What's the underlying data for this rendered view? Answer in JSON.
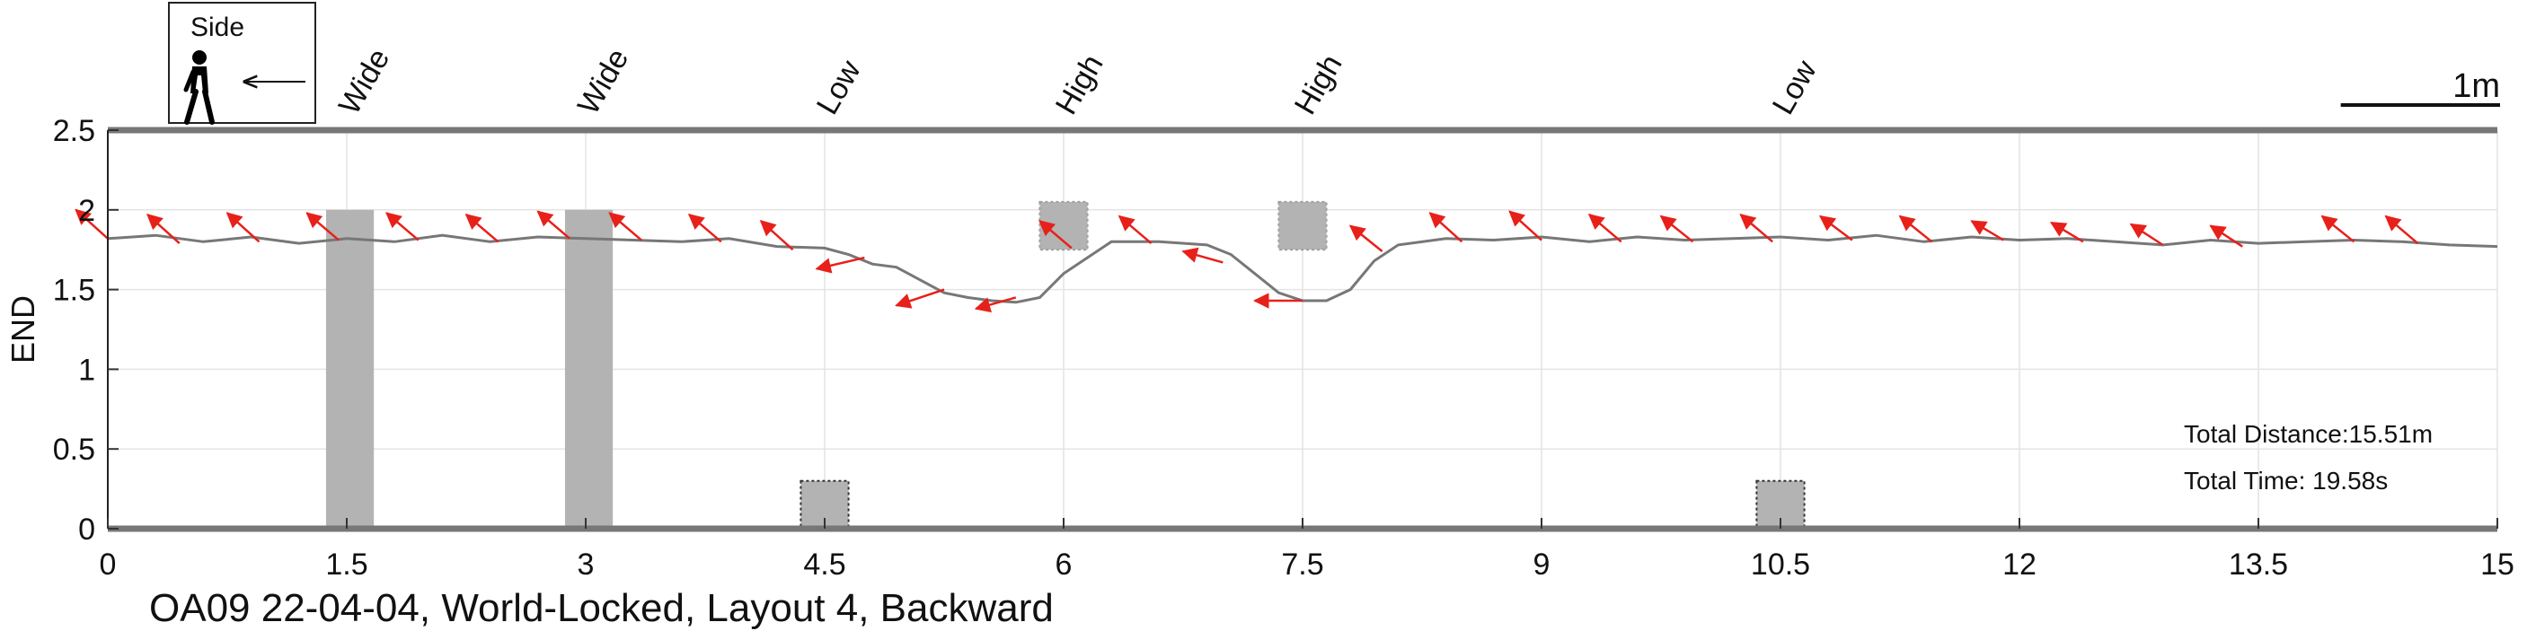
{
  "chart_data": {
    "type": "line",
    "title": "OA09 22-04-04, World-Locked, Layout 4, Backward",
    "ylabel": "END",
    "xlabel": "",
    "xlim": [
      0,
      15
    ],
    "ylim": [
      0,
      2.5
    ],
    "x_ticks": [
      "0",
      "1.5",
      "3",
      "4.5",
      "6",
      "7.5",
      "9",
      "10.5",
      "12",
      "13.5",
      "15"
    ],
    "y_ticks": [
      "0",
      "0.5",
      "1",
      "1.5",
      "2",
      "2.5"
    ],
    "grid": true,
    "legend": {
      "label": "Side",
      "icon": "walking-person-icon",
      "direction": "left-arrow-icon",
      "placement": "top-left"
    },
    "scale_bar": {
      "label": "1m",
      "length": 1
    },
    "info": {
      "distance": "Total Distance:15.51m",
      "time": "Total Time: 19.58s"
    },
    "obstacles": [
      {
        "label": "Wide",
        "type": "tall",
        "x_start": 1.37,
        "x_end": 1.67,
        "y_start": 0,
        "y_end": 2.0
      },
      {
        "label": "Wide",
        "type": "tall",
        "x_start": 2.87,
        "x_end": 3.17,
        "y_start": 0,
        "y_end": 2.0
      },
      {
        "label": "Low",
        "type": "low",
        "x_start": 4.35,
        "x_end": 4.65,
        "y_start": 0,
        "y_end": 0.3
      },
      {
        "label": "High",
        "type": "high",
        "x_start": 5.85,
        "x_end": 6.15,
        "y_start": 1.75,
        "y_end": 2.05
      },
      {
        "label": "High",
        "type": "high",
        "x_start": 7.35,
        "x_end": 7.65,
        "y_start": 1.75,
        "y_end": 2.05
      },
      {
        "label": "Low",
        "type": "low",
        "x_start": 10.35,
        "x_end": 10.65,
        "y_start": 0,
        "y_end": 0.3
      }
    ],
    "obstacle_label_x": [
      1.6,
      3.1,
      4.6,
      6.1,
      7.6,
      10.6
    ],
    "series": [
      {
        "type": "line",
        "color": "#777777",
        "x": [
          0.0,
          0.3,
          0.6,
          0.9,
          1.2,
          1.5,
          1.8,
          2.1,
          2.4,
          2.7,
          3.0,
          3.3,
          3.6,
          3.9,
          4.2,
          4.5,
          4.65,
          4.8,
          4.95,
          5.1,
          5.25,
          5.4,
          5.55,
          5.7,
          5.85,
          6.0,
          6.3,
          6.6,
          6.9,
          7.05,
          7.2,
          7.35,
          7.5,
          7.65,
          7.8,
          7.95,
          8.1,
          8.4,
          8.7,
          9.0,
          9.3,
          9.6,
          9.9,
          10.2,
          10.5,
          10.8,
          11.1,
          11.4,
          11.7,
          12.0,
          12.3,
          12.6,
          12.9,
          13.2,
          13.5,
          13.8,
          14.1,
          14.4,
          14.7,
          15.0
        ],
        "y": [
          1.82,
          1.84,
          1.8,
          1.83,
          1.79,
          1.82,
          1.8,
          1.84,
          1.8,
          1.83,
          1.82,
          1.81,
          1.8,
          1.82,
          1.77,
          1.76,
          1.72,
          1.66,
          1.64,
          1.56,
          1.48,
          1.45,
          1.43,
          1.42,
          1.45,
          1.6,
          1.8,
          1.8,
          1.78,
          1.72,
          1.6,
          1.48,
          1.43,
          1.43,
          1.5,
          1.68,
          1.78,
          1.82,
          1.81,
          1.83,
          1.8,
          1.83,
          1.81,
          1.82,
          1.83,
          1.81,
          1.84,
          1.8,
          1.83,
          1.81,
          1.82,
          1.8,
          1.78,
          1.81,
          1.79,
          1.8,
          1.81,
          1.8,
          1.78,
          1.77
        ]
      },
      {
        "type": "heading_arrows",
        "color": "#e8201a",
        "points": [
          {
            "x": 0.0,
            "y": 1.82,
            "tx": -0.2,
            "ty": 2.0
          },
          {
            "x": 0.45,
            "y": 1.79,
            "tx": 0.25,
            "ty": 1.97
          },
          {
            "x": 0.95,
            "y": 1.8,
            "tx": 0.75,
            "ty": 1.98
          },
          {
            "x": 1.45,
            "y": 1.81,
            "tx": 1.25,
            "ty": 1.98
          },
          {
            "x": 1.95,
            "y": 1.81,
            "tx": 1.75,
            "ty": 1.98
          },
          {
            "x": 2.45,
            "y": 1.8,
            "tx": 2.25,
            "ty": 1.97
          },
          {
            "x": 2.9,
            "y": 1.82,
            "tx": 2.7,
            "ty": 1.99
          },
          {
            "x": 3.35,
            "y": 1.81,
            "tx": 3.15,
            "ty": 1.98
          },
          {
            "x": 3.85,
            "y": 1.8,
            "tx": 3.65,
            "ty": 1.97
          },
          {
            "x": 4.3,
            "y": 1.75,
            "tx": 4.1,
            "ty": 1.93
          },
          {
            "x": 4.75,
            "y": 1.7,
            "tx": 4.45,
            "ty": 1.63
          },
          {
            "x": 5.25,
            "y": 1.5,
            "tx": 4.95,
            "ty": 1.4
          },
          {
            "x": 5.7,
            "y": 1.45,
            "tx": 5.45,
            "ty": 1.38
          },
          {
            "x": 6.05,
            "y": 1.76,
            "tx": 5.85,
            "ty": 1.93
          },
          {
            "x": 6.55,
            "y": 1.79,
            "tx": 6.35,
            "ty": 1.96
          },
          {
            "x": 7.0,
            "y": 1.67,
            "tx": 6.75,
            "ty": 1.74
          },
          {
            "x": 7.5,
            "y": 1.43,
            "tx": 7.2,
            "ty": 1.43
          },
          {
            "x": 8.0,
            "y": 1.74,
            "tx": 7.8,
            "ty": 1.9
          },
          {
            "x": 8.5,
            "y": 1.8,
            "tx": 8.3,
            "ty": 1.98
          },
          {
            "x": 9.0,
            "y": 1.81,
            "tx": 8.8,
            "ty": 1.99
          },
          {
            "x": 9.5,
            "y": 1.8,
            "tx": 9.3,
            "ty": 1.97
          },
          {
            "x": 9.95,
            "y": 1.8,
            "tx": 9.75,
            "ty": 1.96
          },
          {
            "x": 10.45,
            "y": 1.8,
            "tx": 10.25,
            "ty": 1.97
          },
          {
            "x": 10.95,
            "y": 1.81,
            "tx": 10.75,
            "ty": 1.96
          },
          {
            "x": 11.45,
            "y": 1.8,
            "tx": 11.25,
            "ty": 1.96
          },
          {
            "x": 11.9,
            "y": 1.81,
            "tx": 11.7,
            "ty": 1.93
          },
          {
            "x": 12.4,
            "y": 1.8,
            "tx": 12.2,
            "ty": 1.92
          },
          {
            "x": 12.9,
            "y": 1.78,
            "tx": 12.7,
            "ty": 1.91
          },
          {
            "x": 13.4,
            "y": 1.77,
            "tx": 13.2,
            "ty": 1.9
          },
          {
            "x": 14.1,
            "y": 1.8,
            "tx": 13.9,
            "ty": 1.96
          },
          {
            "x": 14.5,
            "y": 1.79,
            "tx": 14.3,
            "ty": 1.96
          }
        ]
      }
    ]
  }
}
